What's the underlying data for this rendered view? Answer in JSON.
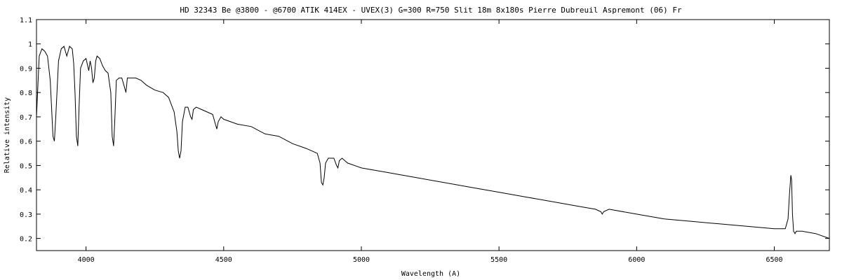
{
  "chart_data": {
    "type": "line",
    "title": "HD 32343  Be    @3800 - @6700    ATIK 414EX - UVEX(3)  G=300  R=750  Slit 18m    8x180s    Pierre Dubreuil  Aspremont (06) Fr",
    "xlabel": "Wavelength (A)",
    "ylabel": "Relative intensity",
    "xlim": [
      3820,
      6700
    ],
    "ylim": [
      0.15,
      1.1
    ],
    "grid": false,
    "legend": "none",
    "xticks": [
      4000,
      4500,
      5000,
      5500,
      6000,
      6500
    ],
    "yticks": [
      0.2,
      0.3,
      0.4,
      0.5,
      0.6,
      0.7,
      0.8,
      0.9,
      1,
      1.1
    ],
    "line_color": "#000000",
    "series": [
      {
        "x": [
          3820,
          3830,
          3840,
          3850,
          3860,
          3870,
          3880,
          3885,
          3890,
          3900,
          3910,
          3920,
          3930,
          3940,
          3950,
          3955,
          3960,
          3965,
          3970,
          3975,
          3980,
          3990,
          4000,
          4010,
          4015,
          4020,
          4025,
          4030,
          4035,
          4040,
          4050,
          4060,
          4070,
          4080,
          4090,
          4095,
          4100,
          4105,
          4110,
          4120,
          4130,
          4140,
          4145,
          4150,
          4160,
          4180,
          4200,
          4220,
          4250,
          4280,
          4300,
          4320,
          4330,
          4335,
          4340,
          4345,
          4350,
          4360,
          4370,
          4380,
          4385,
          4390,
          4400,
          4420,
          4440,
          4460,
          4470,
          4475,
          4480,
          4490,
          4500,
          4550,
          4600,
          4650,
          4700,
          4750,
          4800,
          4820,
          4840,
          4850,
          4855,
          4860,
          4865,
          4870,
          4880,
          4900,
          4910,
          4915,
          4920,
          4930,
          4950,
          5000,
          5100,
          5200,
          5300,
          5400,
          5500,
          5600,
          5700,
          5800,
          5850,
          5870,
          5875,
          5880,
          5900,
          6000,
          6100,
          6200,
          6300,
          6400,
          6500,
          6540,
          6550,
          6555,
          6560,
          6563,
          6566,
          6570,
          6575,
          6580,
          6600,
          6650,
          6700
        ],
        "y": [
          0.7,
          0.95,
          0.98,
          0.97,
          0.95,
          0.85,
          0.62,
          0.6,
          0.7,
          0.93,
          0.98,
          0.99,
          0.95,
          0.99,
          0.98,
          0.92,
          0.8,
          0.62,
          0.58,
          0.75,
          0.9,
          0.93,
          0.94,
          0.89,
          0.93,
          0.9,
          0.84,
          0.86,
          0.93,
          0.95,
          0.94,
          0.91,
          0.89,
          0.88,
          0.8,
          0.62,
          0.58,
          0.7,
          0.85,
          0.86,
          0.86,
          0.82,
          0.8,
          0.86,
          0.86,
          0.86,
          0.85,
          0.83,
          0.81,
          0.8,
          0.78,
          0.72,
          0.64,
          0.56,
          0.53,
          0.56,
          0.68,
          0.74,
          0.74,
          0.7,
          0.69,
          0.73,
          0.74,
          0.73,
          0.72,
          0.71,
          0.67,
          0.65,
          0.68,
          0.7,
          0.69,
          0.67,
          0.66,
          0.63,
          0.62,
          0.59,
          0.57,
          0.56,
          0.55,
          0.51,
          0.43,
          0.42,
          0.45,
          0.51,
          0.53,
          0.53,
          0.5,
          0.49,
          0.52,
          0.53,
          0.51,
          0.49,
          0.47,
          0.45,
          0.43,
          0.41,
          0.39,
          0.37,
          0.35,
          0.33,
          0.32,
          0.31,
          0.3,
          0.31,
          0.32,
          0.3,
          0.28,
          0.27,
          0.26,
          0.25,
          0.24,
          0.24,
          0.28,
          0.38,
          0.46,
          0.44,
          0.3,
          0.23,
          0.22,
          0.23,
          0.23,
          0.22,
          0.2
        ]
      }
    ]
  }
}
